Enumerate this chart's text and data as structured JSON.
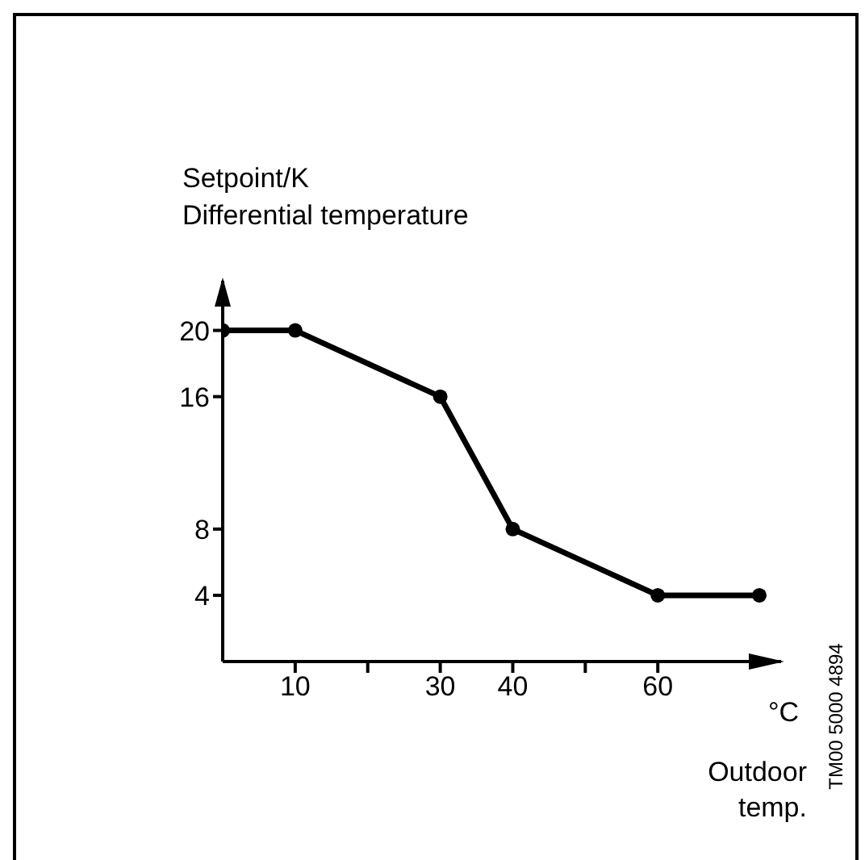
{
  "chart_data": {
    "type": "line",
    "ylabel": "Setpoint/K\nDifferential temperature",
    "xlabel": "°C\nOutdoor\ntemp.",
    "annotations": [
      "TM00 5000 4894"
    ],
    "x": [
      0,
      10,
      30,
      40,
      60,
      74
    ],
    "series": [
      {
        "color": "#000000",
        "values": [
          20,
          20,
          16,
          8,
          4,
          4
        ]
      }
    ],
    "xlim": [
      0,
      77
    ],
    "xticks": [
      10,
      {
        "value": 20,
        "label": null
      },
      30,
      40,
      {
        "value": 50,
        "label": null
      },
      60
    ],
    "ylim": [
      0,
      23
    ],
    "yticks": [
      4,
      8,
      16,
      20
    ],
    "marker": "circle",
    "line_style": "solid",
    "grid": false,
    "legend": false
  }
}
